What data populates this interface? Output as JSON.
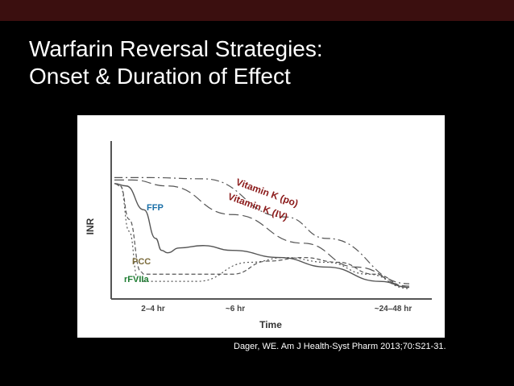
{
  "slide": {
    "title_line1": "Warfarin Reversal Strategies:",
    "title_line2": "Onset & Duration of Effect",
    "citation": "Dager, WE.  Am J Health-Syst Pharm 2013;70:S21-31."
  },
  "colors": {
    "background": "#000000",
    "top_bar": "#3b0f0f",
    "vitamin_k_label": "#8b1a1a",
    "ffp_label": "#1a6fa8",
    "pcc_label": "#7a6a3a",
    "rfviia_label": "#1e7d32",
    "curve": "#555555"
  },
  "chart_data": {
    "type": "line",
    "xlabel": "Time",
    "ylabel": "INR",
    "x_ticks": [
      "2–4 hr",
      "~6 hr",
      "~24–48 hr"
    ],
    "series": [
      {
        "name": "Vitamin K (po)",
        "style": "dash-dot",
        "points": [
          [
            0,
            95
          ],
          [
            12,
            95
          ],
          [
            30,
            94
          ],
          [
            58,
            62
          ],
          [
            72,
            44
          ],
          [
            100,
            6
          ]
        ]
      },
      {
        "name": "Vitamin K (IV)",
        "style": "long-dash",
        "points": [
          [
            0,
            93
          ],
          [
            6,
            93
          ],
          [
            18,
            88
          ],
          [
            40,
            64
          ],
          [
            64,
            40
          ],
          [
            82,
            20
          ],
          [
            100,
            4
          ]
        ]
      },
      {
        "name": "FFP",
        "style": "solid",
        "points": [
          [
            0,
            90
          ],
          [
            4,
            88
          ],
          [
            10,
            68
          ],
          [
            14,
            44
          ],
          [
            16,
            34
          ],
          [
            18,
            32
          ],
          [
            22,
            36
          ],
          [
            30,
            38
          ],
          [
            40,
            34
          ],
          [
            56,
            28
          ],
          [
            72,
            20
          ],
          [
            90,
            8
          ],
          [
            100,
            3
          ]
        ]
      },
      {
        "name": "PCC",
        "style": "short-dash",
        "points": [
          [
            0,
            90
          ],
          [
            2,
            88
          ],
          [
            5,
            60
          ],
          [
            9,
            16
          ],
          [
            10,
            14
          ],
          [
            40,
            14
          ],
          [
            52,
            25
          ],
          [
            64,
            28
          ],
          [
            76,
            24
          ],
          [
            88,
            14
          ],
          [
            100,
            3
          ]
        ]
      },
      {
        "name": "rFVIIa",
        "style": "dotted",
        "points": [
          [
            0,
            90
          ],
          [
            2,
            88
          ],
          [
            5,
            50
          ],
          [
            8,
            10
          ],
          [
            9,
            8
          ],
          [
            28,
            8
          ],
          [
            46,
            24
          ],
          [
            58,
            28
          ],
          [
            72,
            24
          ],
          [
            86,
            14
          ],
          [
            100,
            2
          ]
        ]
      }
    ]
  }
}
